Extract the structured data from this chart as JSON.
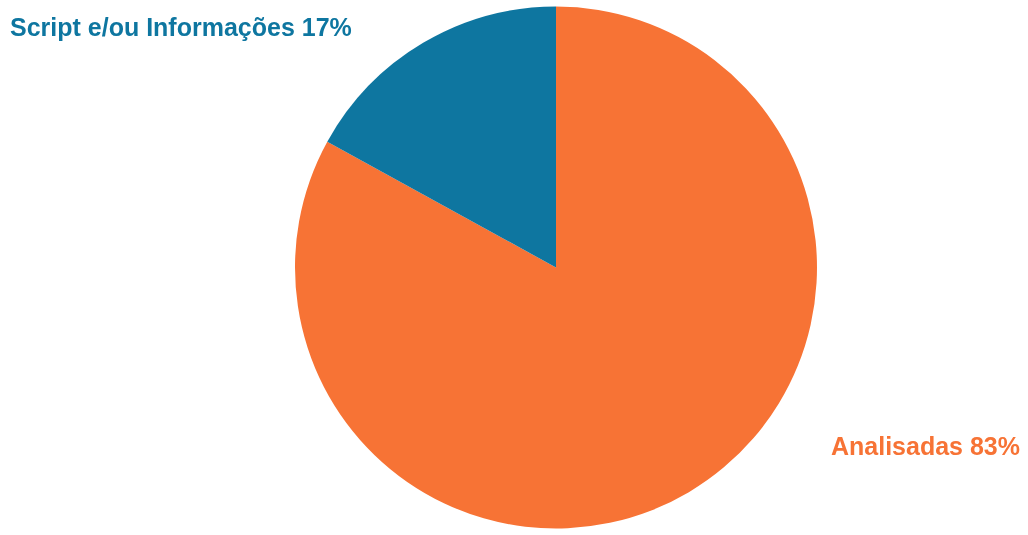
{
  "chart_data": {
    "type": "pie",
    "categories": [
      "Analisadas",
      "Script e/ou Informações"
    ],
    "values": [
      83,
      17
    ],
    "colors": [
      "#f77335",
      "#0e76a0"
    ],
    "value_labels": [
      "83%",
      "17%"
    ],
    "legend": false
  }
}
